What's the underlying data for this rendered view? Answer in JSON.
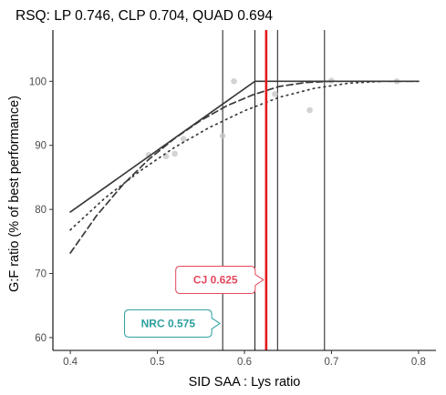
{
  "chart_data": {
    "type": "line",
    "title": "RSQ: LP 0.746, CLP 0.704, QUAD 0.694",
    "xlabel": "SID SAA : Lys ratio",
    "ylabel": "G:F ratio (% of best performance)",
    "xlim": [
      0.38,
      0.82
    ],
    "ylim": [
      58,
      108
    ],
    "xticks": [
      0.4,
      0.5,
      0.6,
      0.7,
      0.8
    ],
    "yticks": [
      60,
      70,
      80,
      90,
      100
    ],
    "xtick_labels": [
      "0.4",
      "0.5",
      "0.6",
      "0.7",
      "0.8"
    ],
    "ytick_labels": [
      "60",
      "70",
      "80",
      "90",
      "100"
    ],
    "grid": false,
    "series": [
      {
        "style": "solid",
        "x": [
          0.4,
          0.612,
          0.8
        ],
        "y": [
          79.6,
          100.0,
          100.0
        ]
      },
      {
        "style": "dashed",
        "x": [
          0.4,
          0.43,
          0.46,
          0.49,
          0.52,
          0.55,
          0.58,
          0.61,
          0.64,
          0.67,
          0.7,
          0.73,
          0.76,
          0.8
        ],
        "y": [
          73.2,
          79.0,
          83.8,
          87.8,
          91.1,
          93.9,
          96.2,
          97.9,
          99.2,
          99.8,
          100.0,
          100.0,
          100.0,
          100.0
        ]
      },
      {
        "style": "dotted",
        "x": [
          0.4,
          0.44,
          0.48,
          0.52,
          0.56,
          0.6,
          0.64,
          0.68,
          0.72,
          0.76,
          0.8
        ],
        "y": [
          76.8,
          81.8,
          86.0,
          89.7,
          92.8,
          95.4,
          97.5,
          98.9,
          99.7,
          100.0,
          100.0
        ]
      }
    ],
    "points": [
      {
        "x": 0.49,
        "y": 88.5
      },
      {
        "x": 0.51,
        "y": 88.3
      },
      {
        "x": 0.52,
        "y": 88.7
      },
      {
        "x": 0.53,
        "y": 91.0
      },
      {
        "x": 0.575,
        "y": 91.5
      },
      {
        "x": 0.588,
        "y": 100.0
      },
      {
        "x": 0.635,
        "y": 98.0
      },
      {
        "x": 0.675,
        "y": 95.5
      },
      {
        "x": 0.7,
        "y": 100.1
      },
      {
        "x": 0.775,
        "y": 100.0
      }
    ],
    "vlines_thin": [
      0.575,
      0.612,
      0.638,
      0.692
    ],
    "vline_red": 0.625,
    "callouts": [
      {
        "label": "CJ 0.625",
        "color": "#e4495d",
        "x": 0.625,
        "y": 69.0
      },
      {
        "label": "NRC 0.575",
        "color": "#2b9e9e",
        "x": 0.575,
        "y": 62.2
      }
    ]
  }
}
